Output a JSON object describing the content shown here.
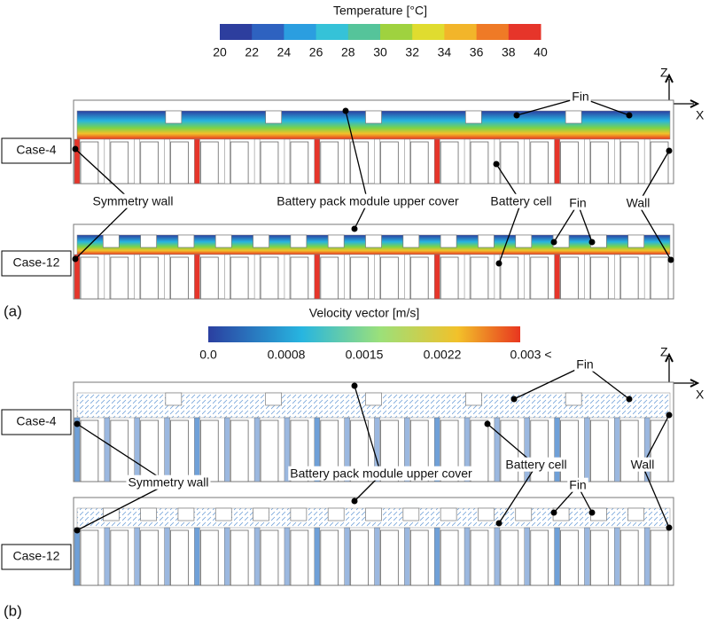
{
  "panel_a": {
    "label": "(a)",
    "colorbar": {
      "title": "Temperature [°C]",
      "ticks": [
        "20",
        "22",
        "24",
        "26",
        "28",
        "30",
        "32",
        "34",
        "36",
        "38",
        "40"
      ]
    },
    "axes": {
      "z": "Z",
      "x": "X"
    },
    "cases": [
      "Case-4",
      "Case-12"
    ],
    "annotations": [
      "Fin",
      "Symmetry wall",
      "Battery pack module upper cover",
      "Battery cell",
      "Fin",
      "Wall"
    ]
  },
  "panel_b": {
    "label": "(b)",
    "colorbar": {
      "title": "Velocity vector [m/s]",
      "ticks": [
        "0.0",
        "0.0008",
        "0.0015",
        "0.0022",
        "0.003 <"
      ]
    },
    "axes": {
      "z": "Z",
      "x": "X"
    },
    "cases": [
      "Case-4",
      "Case-12"
    ],
    "annotations": [
      "Fin",
      "Symmetry wall",
      "Battery pack module upper cover",
      "Battery cell",
      "Fin",
      "Wall"
    ]
  }
}
